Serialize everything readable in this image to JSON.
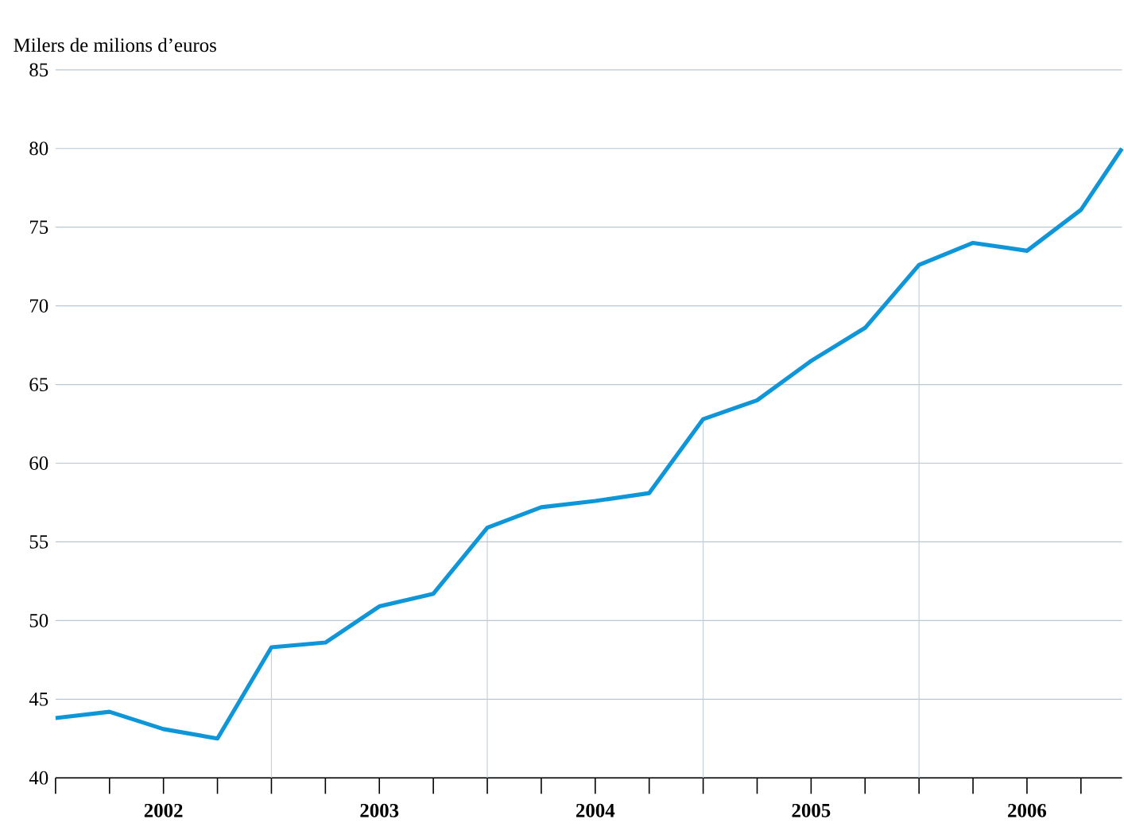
{
  "chart_data": {
    "type": "line",
    "ylabel": "Milers de milions d’euros",
    "x": [
      2002,
      2002.25,
      2002.5,
      2002.75,
      2003,
      2003.25,
      2003.5,
      2003.75,
      2004,
      2004.25,
      2004.5,
      2004.75,
      2005,
      2005.25,
      2005.5,
      2005.75,
      2006,
      2006.25,
      2006.5,
      2006.75,
      2006.94
    ],
    "series": [
      {
        "color": "#0f96d8",
        "values": [
          43.8,
          44.2,
          43.1,
          42.5,
          48.3,
          48.6,
          50.9,
          51.7,
          55.9,
          57.2,
          57.6,
          58.1,
          62.8,
          64.0,
          66.5,
          68.6,
          72.6,
          74.0,
          73.5,
          76.1,
          80.0
        ]
      }
    ],
    "xlim": [
      2002,
      2006.94
    ],
    "xticks": [
      {
        "value": 2002,
        "label": null
      },
      {
        "value": 2002.25,
        "label": null
      },
      {
        "value": 2002.5,
        "label": "2002"
      },
      {
        "value": 2002.75,
        "label": null
      },
      {
        "value": 2003,
        "label": null
      },
      {
        "value": 2003.25,
        "label": null
      },
      {
        "value": 2003.5,
        "label": "2003"
      },
      {
        "value": 2003.75,
        "label": null
      },
      {
        "value": 2004,
        "label": null
      },
      {
        "value": 2004.25,
        "label": null
      },
      {
        "value": 2004.5,
        "label": "2004"
      },
      {
        "value": 2004.75,
        "label": null
      },
      {
        "value": 2005,
        "label": null
      },
      {
        "value": 2005.25,
        "label": null
      },
      {
        "value": 2005.5,
        "label": "2005"
      },
      {
        "value": 2005.75,
        "label": null
      },
      {
        "value": 2006,
        "label": null
      },
      {
        "value": 2006.25,
        "label": null
      },
      {
        "value": 2006.5,
        "label": "2006"
      },
      {
        "value": 2006.75,
        "label": null
      }
    ],
    "ylim": [
      40,
      85
    ],
    "yticks": [
      40,
      45,
      50,
      55,
      60,
      65,
      70,
      75,
      80,
      85
    ],
    "grid": "y",
    "ref_lines": [
      {
        "axis": "x",
        "value": 2003,
        "color": "#c4d0da"
      },
      {
        "axis": "x",
        "value": 2004,
        "color": "#c4d0da"
      },
      {
        "axis": "x",
        "value": 2005,
        "color": "#c4d0da"
      },
      {
        "axis": "x",
        "value": 2006,
        "color": "#c4d0da"
      }
    ]
  }
}
